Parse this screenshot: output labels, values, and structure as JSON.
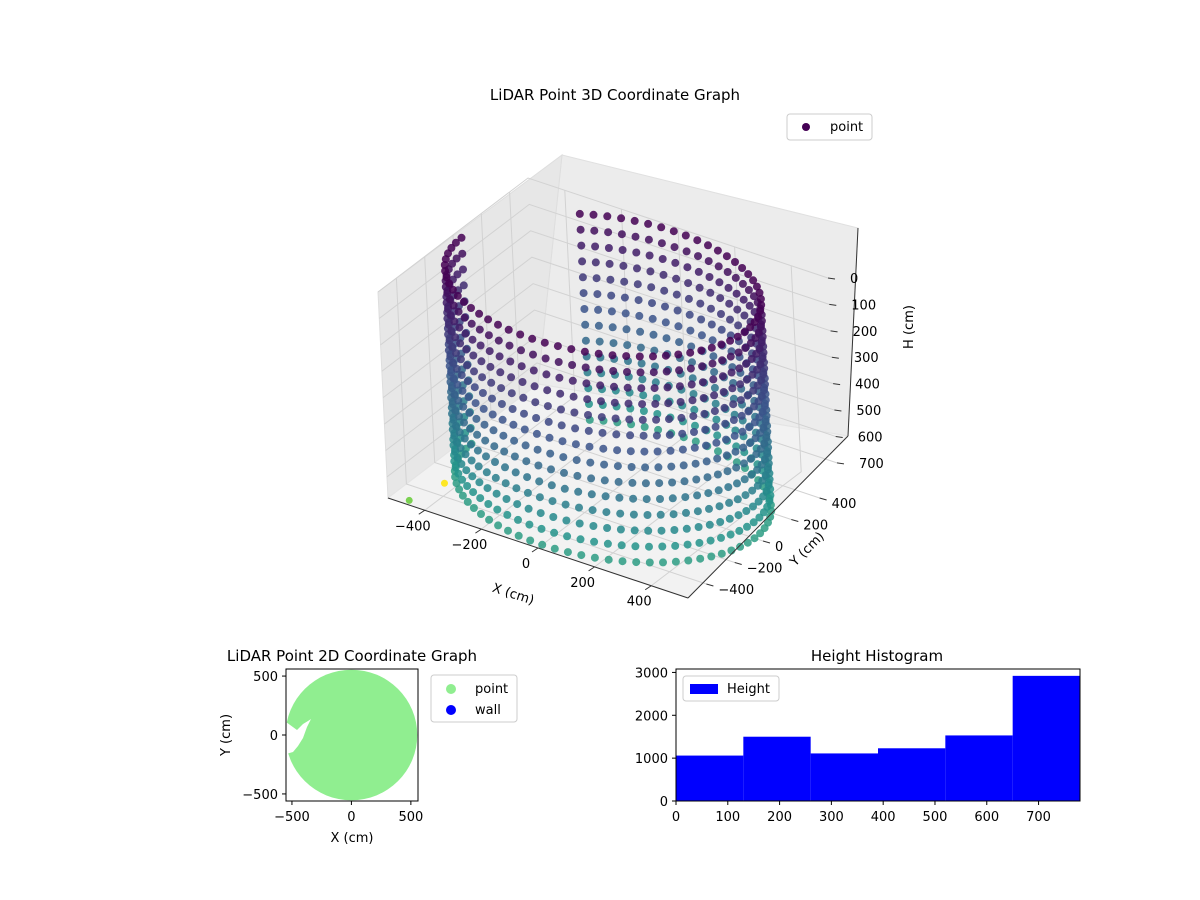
{
  "chart_data": [
    {
      "type": "scatter",
      "projection": "3d",
      "title": "LiDAR Point 3D Coordinate Graph",
      "xlabel": "X (cm)",
      "ylabel": "Y (cm)",
      "zlabel": "H (cm)",
      "x_ticks": [
        "−400",
        "−200",
        "0",
        "200",
        "400"
      ],
      "y_ticks": [
        "−400",
        "−200",
        "0",
        "200",
        "400"
      ],
      "z_ticks": [
        "0",
        "100",
        "200",
        "300",
        "400",
        "500",
        "600",
        "700"
      ],
      "xlim": [
        -530,
        530
      ],
      "ylim": [
        -530,
        530
      ],
      "zlim": [
        780,
        0
      ],
      "z_inverted": true,
      "colormap": "viridis",
      "grid": true,
      "legend": {
        "placement": "top-right",
        "entries": [
          {
            "label": "point",
            "color": "#440154"
          }
        ]
      },
      "series": [
        {
          "name": "point",
          "shape": "cylindrical-wall",
          "radius": 500,
          "angle_step_deg": 5,
          "height_levels": [
            0,
            60,
            120,
            180,
            240,
            300,
            360,
            420,
            480,
            540,
            600,
            660,
            720,
            780
          ],
          "open_sector_deg": [
            130,
            175
          ],
          "color_by": "height",
          "outliers": [
            {
              "x": -470,
              "y": -500,
              "h": 780,
              "color": "#7ad151"
            },
            {
              "x": -430,
              "y": -330,
              "h": 770,
              "color": "#fde725"
            }
          ]
        }
      ]
    },
    {
      "type": "scatter",
      "title": "LiDAR Point 2D Coordinate Graph",
      "xlabel": "X (cm)",
      "ylabel": "Y (cm)",
      "x_ticks": [
        "−500",
        "0",
        "500"
      ],
      "y_ticks": [
        "−500",
        "0",
        "500"
      ],
      "xlim": [
        -550,
        560
      ],
      "ylim": [
        -560,
        560
      ],
      "legend": {
        "placement": "outside-right",
        "entries": [
          {
            "label": "point",
            "color": "#90ee90"
          },
          {
            "label": "wall",
            "color": "#0000ff"
          }
        ]
      },
      "series": [
        {
          "name": "point",
          "color": "#90ee90",
          "shape": "disc",
          "center": [
            0,
            0
          ],
          "radius": 520
        }
      ]
    },
    {
      "type": "bar",
      "title": "Height Histogram",
      "legend": {
        "placement": "top-left",
        "entries": [
          {
            "label": "Height",
            "color": "#0000ff"
          }
        ]
      },
      "x_ticks": [
        "0",
        "100",
        "200",
        "300",
        "400",
        "500",
        "600",
        "700"
      ],
      "y_ticks": [
        "0",
        "1000",
        "2000",
        "3000"
      ],
      "xlim": [
        0,
        780
      ],
      "ylim": [
        0,
        3080
      ],
      "bin_edges": [
        0,
        130,
        260,
        390,
        520,
        650,
        780
      ],
      "series": [
        {
          "name": "Height",
          "color": "#0000ff",
          "values": [
            1060,
            1500,
            1110,
            1230,
            1530,
            2920
          ]
        }
      ]
    }
  ]
}
